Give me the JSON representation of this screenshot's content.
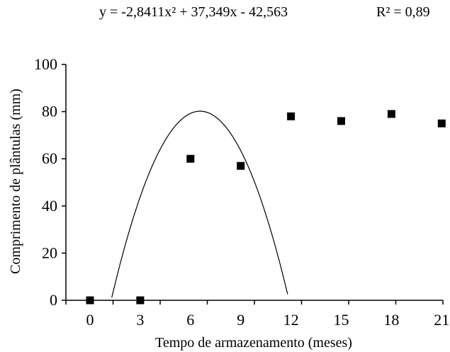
{
  "annotations": {
    "equation": "y = -2,8411x² + 37,349x - 42,563",
    "r_squared": "R² = 0,89"
  },
  "chart_data": {
    "type": "scatter",
    "title": "",
    "xlabel": "Tempo de armazenamento (meses)",
    "ylabel": "Comprimento de plântulas (mm)",
    "categories": [
      "0",
      "3",
      "6",
      "9",
      "12",
      "15",
      "18",
      "21"
    ],
    "xlim": [
      0,
      21
    ],
    "ylim": [
      0,
      100
    ],
    "yticks": [
      0,
      20,
      40,
      60,
      80,
      100
    ],
    "grid": false,
    "series": [
      {
        "values": [
          0,
          0,
          60,
          57,
          78,
          76,
          79,
          75
        ],
        "marker": "square",
        "color": "#000000"
      }
    ],
    "trendline": {
      "type": "polynomial",
      "coefficients": [
        -2.8411,
        37.349,
        -42.563
      ],
      "color": "#000000"
    }
  }
}
